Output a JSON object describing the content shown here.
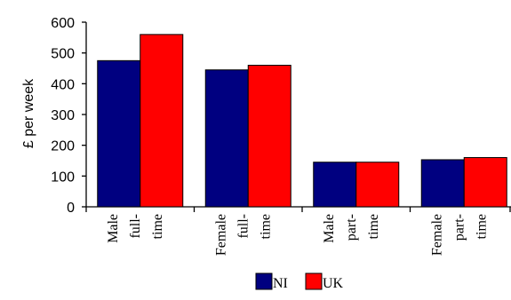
{
  "chart_data": {
    "type": "bar",
    "ylabel": "£ per week",
    "xlabel": "",
    "title": "",
    "ylim": [
      0,
      600
    ],
    "yticks": [
      "0",
      "100",
      "200",
      "300",
      "400",
      "500",
      "600"
    ],
    "categories": [
      [
        "Male",
        "full-",
        "time"
      ],
      [
        "Female",
        "full-",
        "time"
      ],
      [
        "Male",
        "part-",
        "time"
      ],
      [
        "Female",
        "part-",
        "time"
      ]
    ],
    "series": [
      {
        "name": "NI",
        "color": "#000080",
        "values": [
          475,
          445,
          145,
          153
        ]
      },
      {
        "name": "UK",
        "color": "#ff0000",
        "values": [
          560,
          460,
          145,
          160
        ]
      }
    ],
    "legend_position": "bottom",
    "grid": false
  }
}
